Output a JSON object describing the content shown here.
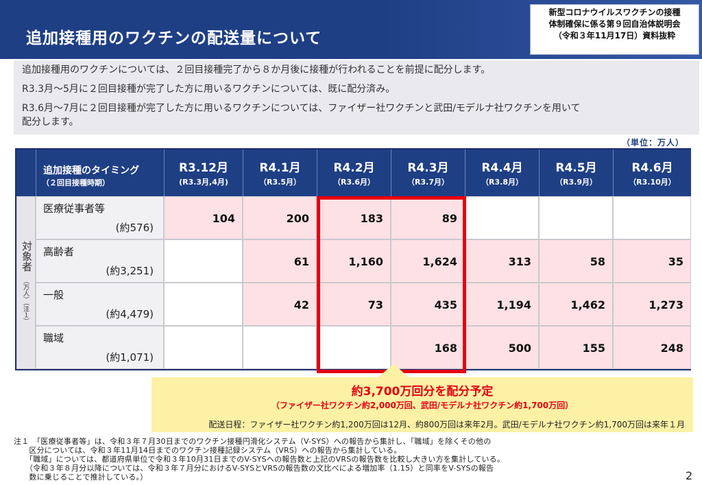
{
  "header": {
    "title": "追加接種用のワクチンの配送量について",
    "badge_lines": [
      "新型コロナウイルスワクチンの接種",
      "体制確保に係る第９回自治体説明会",
      "（令和３年11月17日）資料抜粋"
    ]
  },
  "intro": [
    "追加接種用のワクチンについては、２回目接種完了から８か月後に接種が行われることを前提に配分します。",
    "R3.3月～5月に２回目接種が完了した方に用いるワクチンについては、既に配分済み。",
    "R3.6月～7月に２回目接種が完了した方に用いるワクチンについては、ファイザー社ワクチンと武田/モデルナ社ワクチンを用いて",
    "配分します。"
  ],
  "unit_label": "（単位：万人）",
  "table": {
    "header_label": "追加接種のタイミング",
    "header_sub": "（２回目接種時期）",
    "side_label": "対象者",
    "side_sub": "（万人）（注１）",
    "columns": [
      {
        "month": "R3.12月",
        "period": "(R3.3月,4月)"
      },
      {
        "month": "R4.1月",
        "period": "（R3.5月）"
      },
      {
        "month": "R4.2月",
        "period": "（R3.6月）"
      },
      {
        "month": "R4.3月",
        "period": "（R3.7月）"
      },
      {
        "month": "R4.4月",
        "period": "（R3.8月）"
      },
      {
        "month": "R4.5月",
        "period": "（R3.9月）"
      },
      {
        "month": "R4.6月",
        "period": "（R3.10月）"
      }
    ],
    "rows": [
      {
        "name": "医療従事者等",
        "count": "(約576)",
        "values": [
          "104",
          "200",
          "183",
          "89",
          "",
          "",
          ""
        ]
      },
      {
        "name": "高齢者",
        "count": "(約3,251)",
        "values": [
          "",
          "61",
          "1,160",
          "1,624",
          "313",
          "58",
          "35"
        ]
      },
      {
        "name": "一般",
        "count": "(約4,479)",
        "values": [
          "",
          "42",
          "73",
          "435",
          "1,194",
          "1,462",
          "1,273"
        ]
      },
      {
        "name": "職域",
        "count": "(約1,071)",
        "values": [
          "",
          "",
          "",
          "168",
          "500",
          "155",
          "248"
        ]
      }
    ],
    "shading": [
      [
        "pink",
        "pink",
        "pink",
        "pink",
        "white",
        "white",
        "white"
      ],
      [
        "white",
        "pink",
        "pink",
        "pink",
        "pink",
        "pink",
        "pink"
      ],
      [
        "white",
        "pink",
        "pink",
        "pink",
        "pink",
        "pink",
        "pink"
      ],
      [
        "white",
        "white",
        "white",
        "pink",
        "pink",
        "pink",
        "pink"
      ]
    ]
  },
  "callout": {
    "main": "約3,700万回分を配分予定",
    "sub": "（ファイザー社ワクチン約2,000万回、武田/モデルナ社ワクチン約1,700万回）",
    "schedule": "配送日程：ファイザー社ワクチン約1,200万回は12月、約800万回は来年2月。武田/モデルナ社ワクチン約1,700万回は来年１月"
  },
  "notes": [
    "注１　「医療従事者等」は、令和３年７月30日までのワクチン接種円滑化システム（V-SYS）への報告から集計し、「職域」を除くその他の",
    "　　区分については、令和３年11月14日までのワクチン接種記録システム（VRS）への報告から集計している。",
    "　　「職域」については、都道府県単位で令和３年10月31日までのV-SYSへの報告数と上記のVRSの報告数を比較し大きい方を集計している。",
    "　　（令和３年８月分以降については、令和３年７月分におけるV-SYSとVRSの報告数の文比べによる増加率（1.15）と同率をV-SYSの報告",
    "　　数に乗じることで推計している。）"
  ],
  "page_number": "2",
  "colors": {
    "header_bg": "#1f3f85",
    "highlight_red": "#e60012",
    "cell_pink": "#fde1e4",
    "callout_yellow": "#fcf1a5"
  }
}
